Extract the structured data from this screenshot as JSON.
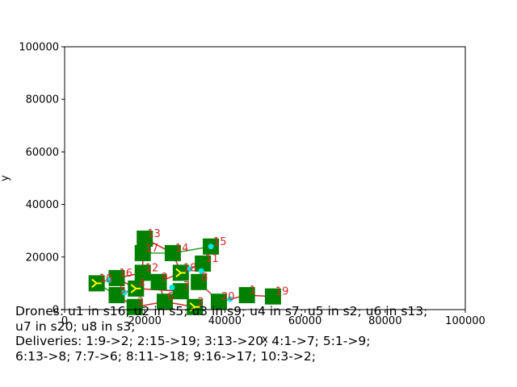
{
  "chart_data": {
    "type": "scatter",
    "title": "",
    "xlabel": "x",
    "ylabel": "y",
    "xlim": [
      0,
      100000
    ],
    "ylim": [
      0,
      100000
    ],
    "xticks": [
      0,
      20000,
      40000,
      60000,
      80000,
      100000
    ],
    "yticks": [
      0,
      20000,
      40000,
      60000,
      80000,
      100000
    ],
    "grid": false,
    "colors": {
      "station": "#008000",
      "route": "#d62728",
      "link": "#2ca02c",
      "label": "#d62728",
      "drone": "#00e5e5",
      "delivery": "#ffff00"
    },
    "stations": [
      {
        "id": 1,
        "label": "1",
        "x": 45500,
        "y": 5500
      },
      {
        "id": 2,
        "label": "2",
        "x": 32500,
        "y": 1000
      },
      {
        "id": 3,
        "label": "3",
        "x": 17500,
        "y": 1000
      },
      {
        "id": 4,
        "label": "4",
        "x": 17800,
        "y": 8000
      },
      {
        "id": 5,
        "label": "5",
        "x": 13000,
        "y": 5500
      },
      {
        "id": 6,
        "label": "6",
        "x": 25000,
        "y": 3000
      },
      {
        "id": 7,
        "label": "7",
        "x": 29000,
        "y": 7000
      },
      {
        "id": 8,
        "label": "8",
        "x": 33500,
        "y": 10500
      },
      {
        "id": 9,
        "label": "9",
        "x": 23500,
        "y": 10500
      },
      {
        "id": 10,
        "label": "10",
        "x": 8000,
        "y": 10000
      },
      {
        "id": 11,
        "label": "11",
        "x": 34500,
        "y": 17500
      },
      {
        "id": 12,
        "label": "12",
        "x": 19500,
        "y": 14000
      },
      {
        "id": 13,
        "label": "13",
        "x": 20000,
        "y": 27000
      },
      {
        "id": 14,
        "label": "14",
        "x": 27000,
        "y": 21500
      },
      {
        "id": 15,
        "label": "15",
        "x": 36500,
        "y": 24000
      },
      {
        "id": 16,
        "label": "16",
        "x": 13000,
        "y": 12000
      },
      {
        "id": 17,
        "label": "17",
        "x": 19500,
        "y": 21500
      },
      {
        "id": 18,
        "label": "18",
        "x": 29000,
        "y": 14000
      },
      {
        "id": 19,
        "label": "19",
        "x": 52000,
        "y": 5000
      },
      {
        "id": 20,
        "label": "20",
        "x": 38500,
        "y": 3000
      }
    ],
    "routes": [
      [
        1,
        19
      ],
      [
        1,
        20
      ],
      [
        20,
        8
      ],
      [
        8,
        11
      ],
      [
        11,
        18
      ],
      [
        18,
        9
      ],
      [
        9,
        6
      ],
      [
        6,
        2
      ],
      [
        2,
        7
      ],
      [
        7,
        4
      ],
      [
        4,
        5
      ],
      [
        5,
        3
      ],
      [
        3,
        6
      ],
      [
        4,
        16
      ],
      [
        16,
        12
      ],
      [
        12,
        17
      ],
      [
        17,
        13
      ],
      [
        13,
        14
      ],
      [
        14,
        18
      ],
      [
        10,
        16
      ],
      [
        9,
        12
      ]
    ],
    "links": [
      [
        14,
        15
      ],
      [
        15,
        11
      ],
      [
        17,
        14
      ],
      [
        10,
        5
      ]
    ],
    "drone_markers": [
      [
        9,
        7
      ],
      [
        8,
        11
      ],
      [
        10,
        16
      ],
      [
        4,
        5
      ],
      [
        1,
        20
      ],
      [
        15,
        15
      ],
      [
        11,
        18
      ]
    ],
    "delivery_markers": [
      10,
      18,
      2,
      4
    ]
  },
  "caption": {
    "lines": [
      "Drones: u1 in s16; u2 in s5; u3 in s9; u4 in s7; u5 in s2; u6 in s13;",
      "u7 in s20; u8 in s3;",
      "Deliveries: 1:9->2; 2:15->19; 3:13->20; 4:1->7; 5:1->9;",
      "6:13->8; 7:7->6; 8:11->18; 9:16->17; 10:3->2;"
    ]
  }
}
